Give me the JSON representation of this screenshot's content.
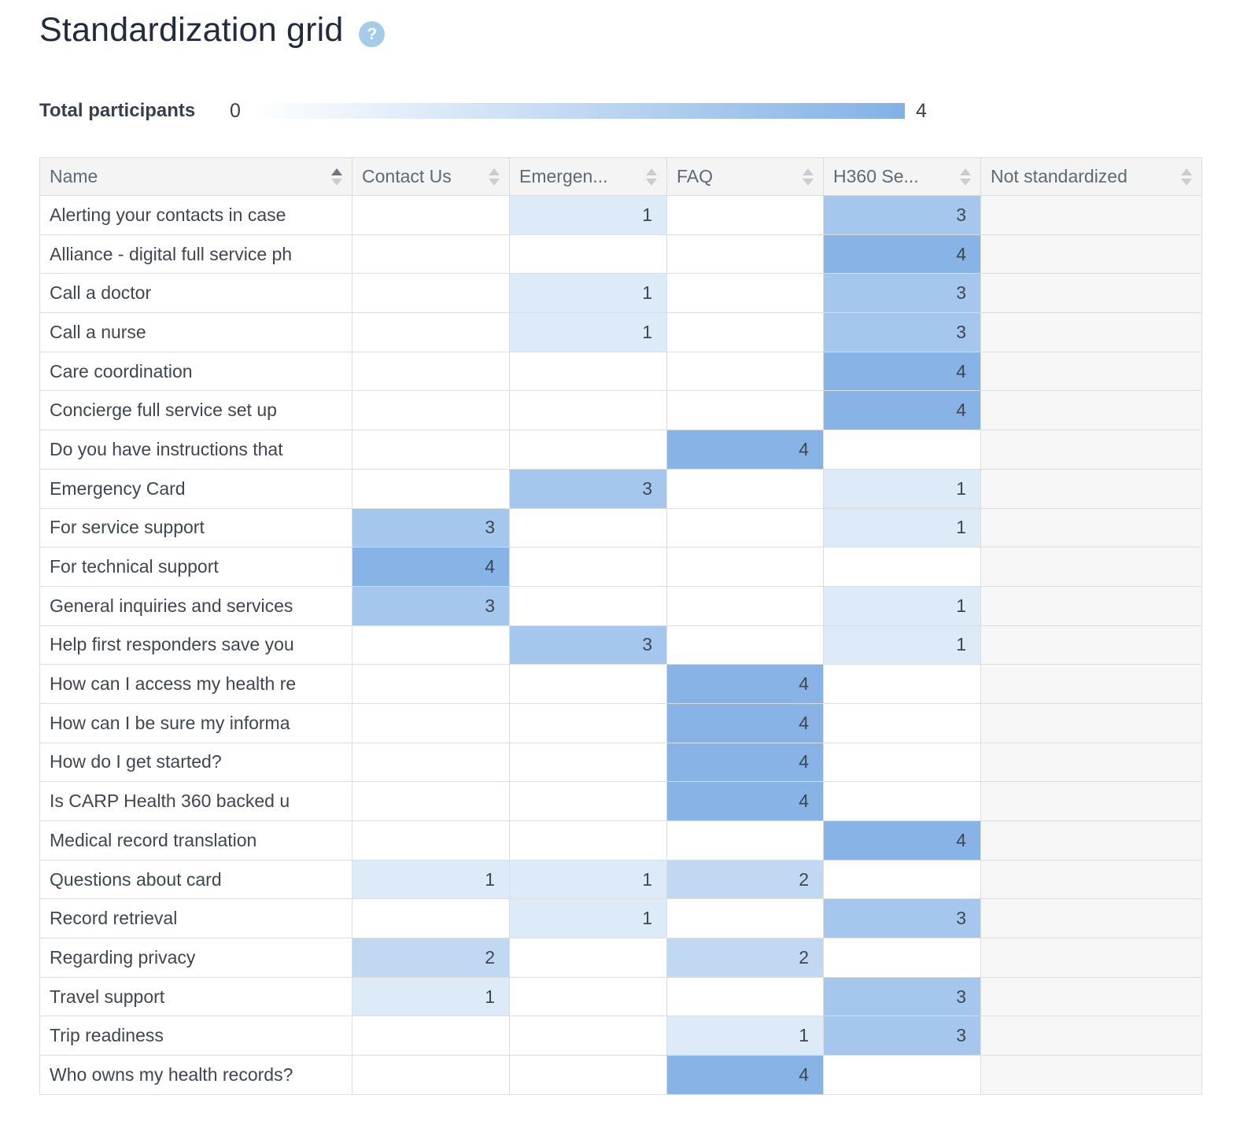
{
  "page": {
    "title": "Standardization grid"
  },
  "icons": {
    "help": "?"
  },
  "legend": {
    "label": "Total participants",
    "min_label": "0",
    "max_label": "4",
    "gradient_from": "#ffffff",
    "gradient_to": "#82b1e6"
  },
  "heatmap_palette": {
    "1": "#ddeaf8",
    "2": "#c1d8f3",
    "3": "#a5c7ee",
    "4": "#87b3e7"
  },
  "colors": {
    "disabled_column_bg": "#f7f7f7",
    "header_bg": "#f4f4f4",
    "border": "#dcdddf",
    "title_text": "#232c3d",
    "cell_text": "#3f4650"
  },
  "table": {
    "columns": [
      {
        "label": "Name",
        "sort": "asc"
      },
      {
        "label": "Contact Us",
        "sort": "none"
      },
      {
        "label": "Emergen...",
        "sort": "none"
      },
      {
        "label": "FAQ",
        "sort": "none"
      },
      {
        "label": "H360 Se...",
        "sort": "none"
      },
      {
        "label": "Not standardized",
        "sort": "none"
      }
    ],
    "rows": [
      {
        "name": "Alerting your contacts in case",
        "values": [
          null,
          1,
          null,
          3,
          null
        ]
      },
      {
        "name": "Alliance - digital full service ph",
        "values": [
          null,
          null,
          null,
          4,
          null
        ]
      },
      {
        "name": "Call a doctor",
        "values": [
          null,
          1,
          null,
          3,
          null
        ]
      },
      {
        "name": "Call a nurse",
        "values": [
          null,
          1,
          null,
          3,
          null
        ]
      },
      {
        "name": "Care coordination",
        "values": [
          null,
          null,
          null,
          4,
          null
        ]
      },
      {
        "name": "Concierge full service set up",
        "values": [
          null,
          null,
          null,
          4,
          null
        ]
      },
      {
        "name": "Do you have instructions that",
        "values": [
          null,
          null,
          4,
          null,
          null
        ]
      },
      {
        "name": "Emergency Card",
        "values": [
          null,
          3,
          null,
          1,
          null
        ]
      },
      {
        "name": "For service support",
        "values": [
          3,
          null,
          null,
          1,
          null
        ]
      },
      {
        "name": "For technical support",
        "values": [
          4,
          null,
          null,
          null,
          null
        ]
      },
      {
        "name": "General inquiries and services",
        "values": [
          3,
          null,
          null,
          1,
          null
        ]
      },
      {
        "name": "Help first responders save you",
        "values": [
          null,
          3,
          null,
          1,
          null
        ]
      },
      {
        "name": "How can I access my health re",
        "values": [
          null,
          null,
          4,
          null,
          null
        ]
      },
      {
        "name": "How can I be sure my informa",
        "values": [
          null,
          null,
          4,
          null,
          null
        ]
      },
      {
        "name": "How do I get started?",
        "values": [
          null,
          null,
          4,
          null,
          null
        ]
      },
      {
        "name": "Is CARP Health 360 backed u",
        "values": [
          null,
          null,
          4,
          null,
          null
        ]
      },
      {
        "name": "Medical record translation",
        "values": [
          null,
          null,
          null,
          4,
          null
        ]
      },
      {
        "name": "Questions about card",
        "values": [
          1,
          1,
          2,
          null,
          null
        ]
      },
      {
        "name": "Record retrieval",
        "values": [
          null,
          1,
          null,
          3,
          null
        ]
      },
      {
        "name": "Regarding privacy",
        "values": [
          2,
          null,
          2,
          null,
          null
        ]
      },
      {
        "name": "Travel support",
        "values": [
          1,
          null,
          null,
          3,
          null
        ]
      },
      {
        "name": "Trip readiness",
        "values": [
          null,
          null,
          1,
          3,
          null
        ]
      },
      {
        "name": "Who owns my health records?",
        "values": [
          null,
          null,
          4,
          null,
          null
        ]
      }
    ]
  }
}
